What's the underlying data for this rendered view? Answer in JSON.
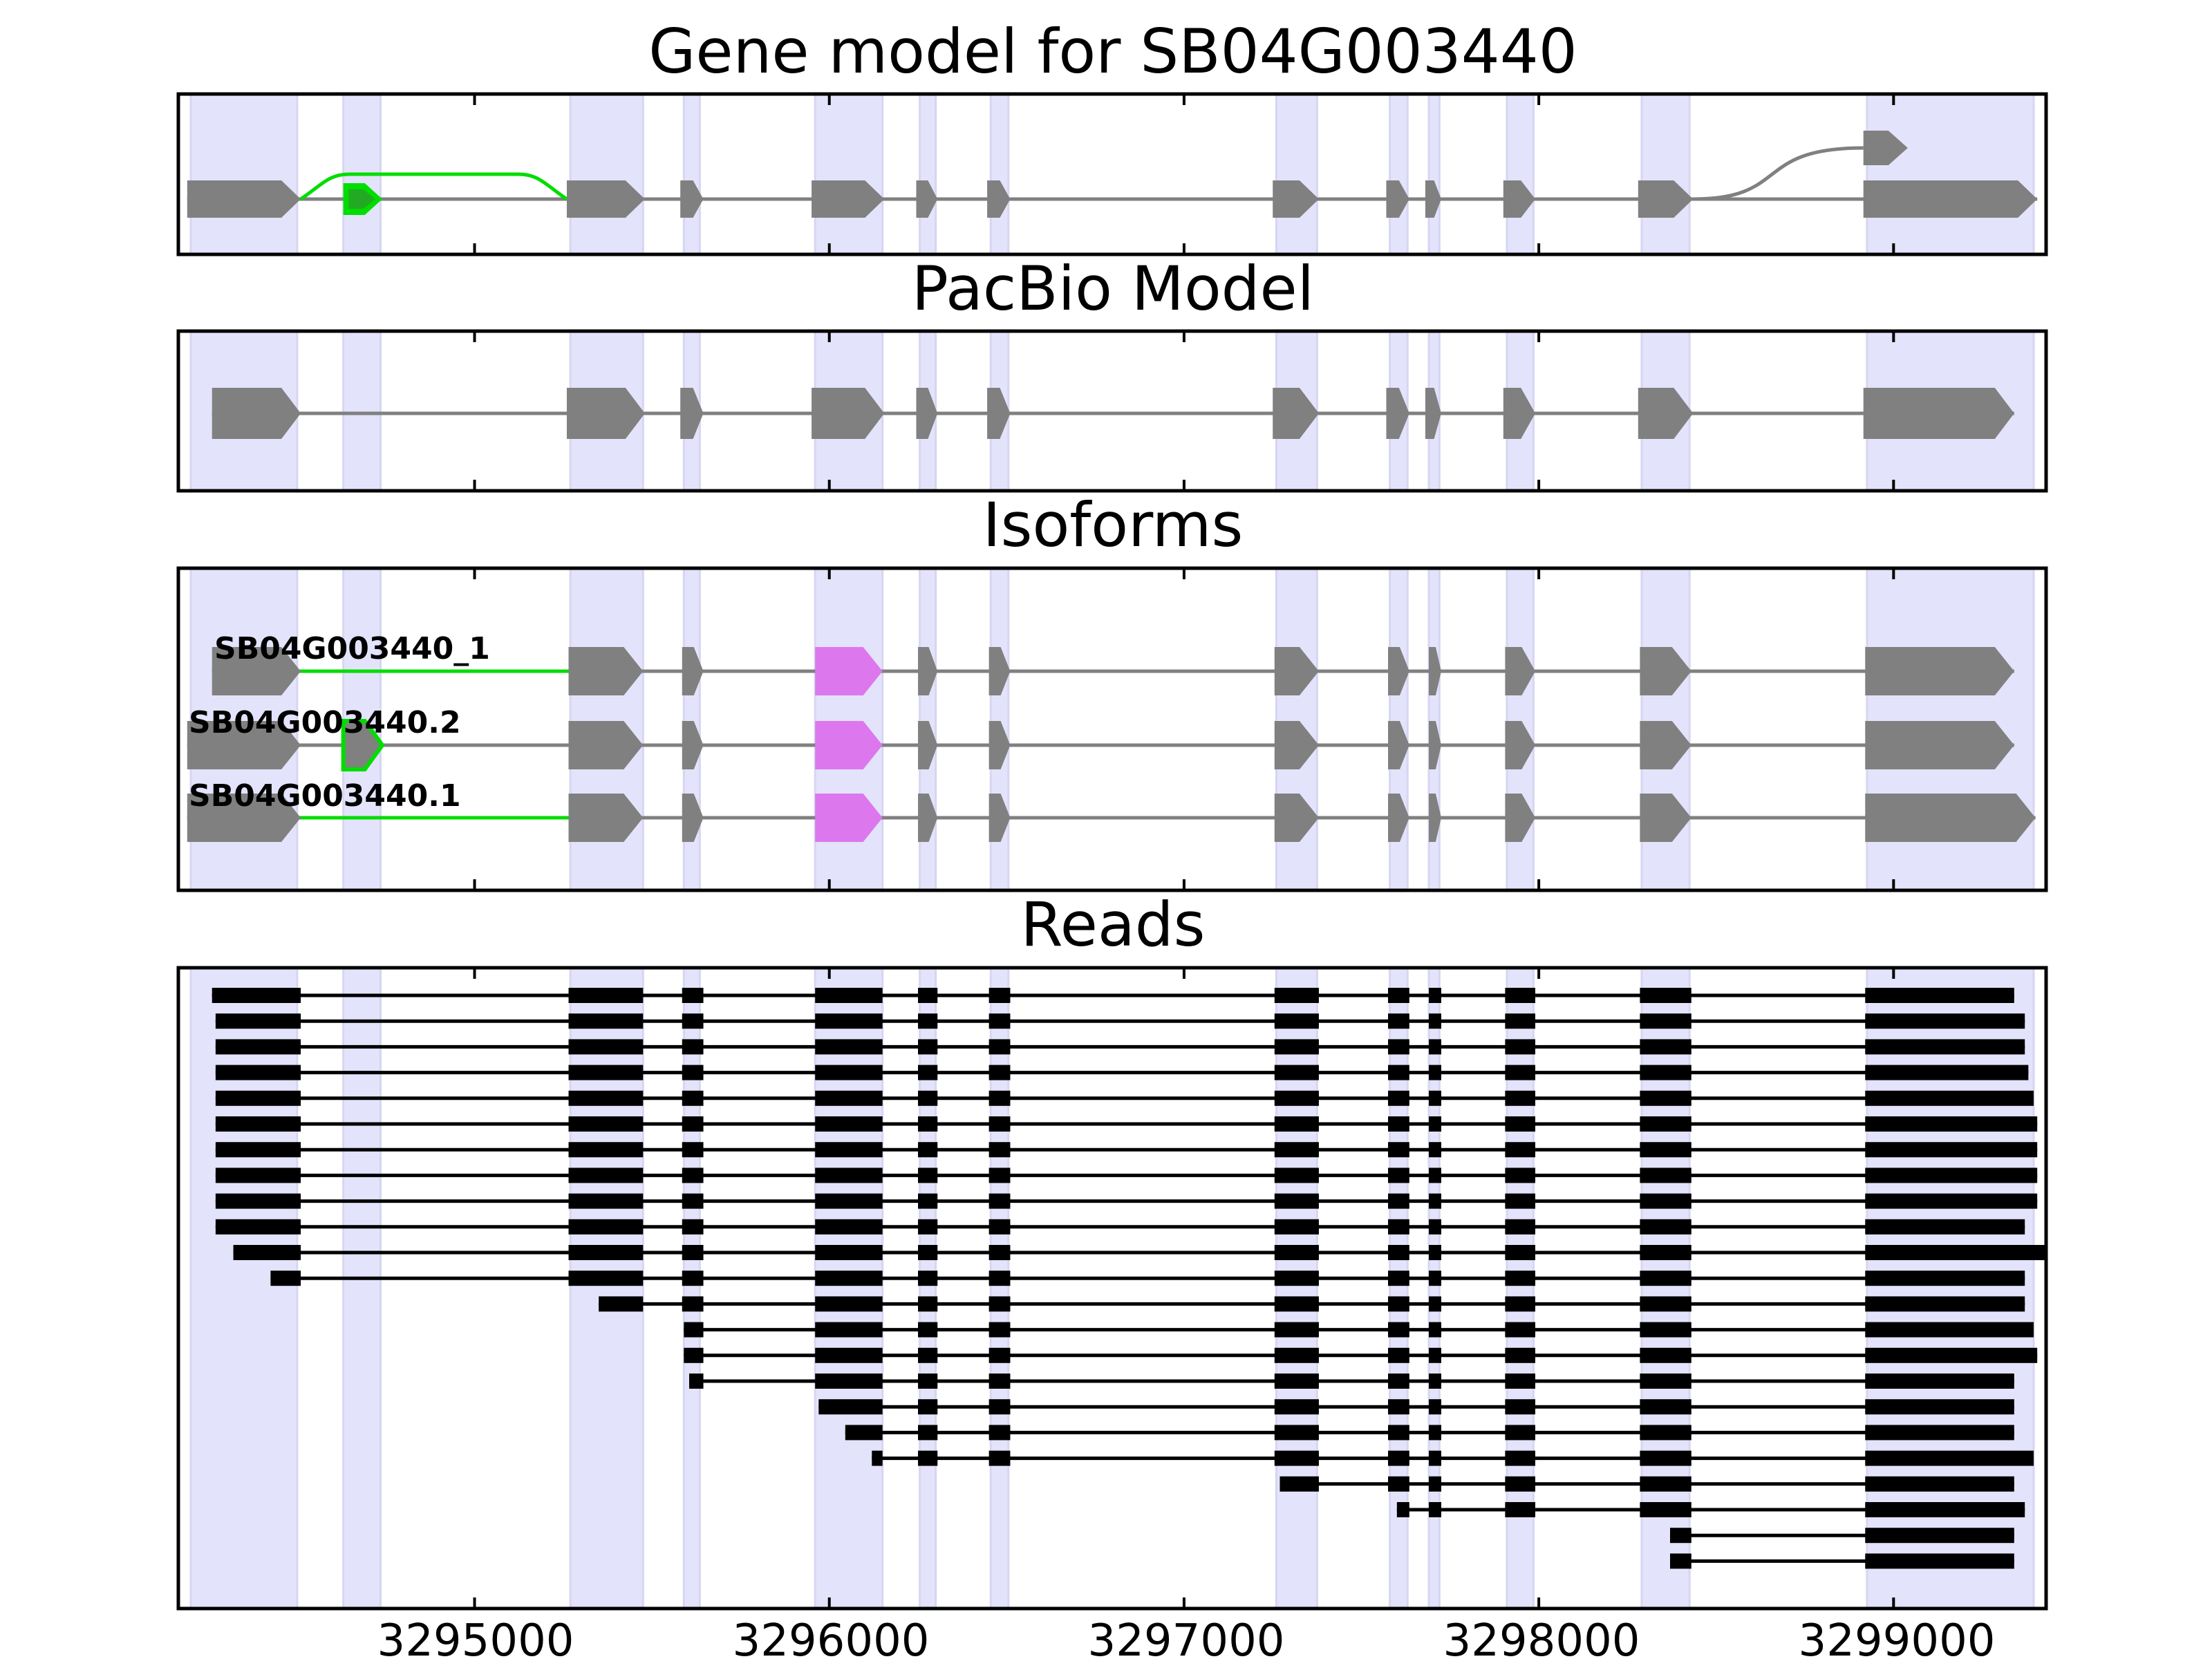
{
  "figure": {
    "panels": [
      {
        "id": "gene-model",
        "title": "Gene model for SB04G003440"
      },
      {
        "id": "pacbio-model",
        "title": "PacBio Model"
      },
      {
        "id": "isoforms",
        "title": "Isoforms"
      },
      {
        "id": "reads",
        "title": "Reads"
      }
    ],
    "x_axis": {
      "ticks": [
        3295000,
        3296000,
        3297000,
        3298000,
        3299000
      ],
      "tick_labels": [
        "3295000",
        "3296000",
        "3297000",
        "3298000",
        "3299000"
      ],
      "range": [
        3294165,
        3299430
      ]
    },
    "colors": {
      "exon": "#808080",
      "intron": "#808080",
      "alt_splice": "#00dd00",
      "highlight_exon": "#dd77ee",
      "shading": "#e3e3fb",
      "read": "#000000"
    }
  },
  "chart_data": {
    "type": "gene-structure",
    "shaded_regions": [
      [
        3294200,
        3294500
      ],
      [
        3294630,
        3294735
      ],
      [
        3295270,
        3295475
      ],
      [
        3295590,
        3295635
      ],
      [
        3295960,
        3296150
      ],
      [
        3296255,
        3296300
      ],
      [
        3296455,
        3296505
      ],
      [
        3297260,
        3297375
      ],
      [
        3297580,
        3297630
      ],
      [
        3297690,
        3297720
      ],
      [
        3297910,
        3297985
      ],
      [
        3298290,
        3298425
      ],
      [
        3298925,
        3299395
      ]
    ],
    "gene_model": {
      "exons": [
        [
          3294190,
          3294510
        ],
        [
          3295260,
          3295480
        ],
        [
          3295580,
          3295645
        ],
        [
          3295950,
          3296155
        ],
        [
          3296245,
          3296305
        ],
        [
          3296445,
          3296510
        ],
        [
          3297250,
          3297380
        ],
        [
          3297570,
          3297635
        ],
        [
          3297680,
          3297725
        ],
        [
          3297900,
          3297990
        ],
        [
          3298280,
          3298435
        ],
        [
          3298915,
          3299405
        ]
      ],
      "alternative_exons": [
        {
          "start": 3294630,
          "end": 3294740,
          "color": "green"
        },
        {
          "start": 3298915,
          "end": 3299040,
          "color": "grey"
        }
      ]
    },
    "pacbio_model": {
      "exons": [
        [
          3294260,
          3294510
        ],
        [
          3295260,
          3295480
        ],
        [
          3295580,
          3295645
        ],
        [
          3295950,
          3296155
        ],
        [
          3296245,
          3296305
        ],
        [
          3296445,
          3296510
        ],
        [
          3297250,
          3297380
        ],
        [
          3297570,
          3297635
        ],
        [
          3297680,
          3297725
        ],
        [
          3297900,
          3297990
        ],
        [
          3298280,
          3298435
        ],
        [
          3298915,
          3299340
        ]
      ]
    },
    "isoforms": [
      {
        "name": "SB04G003440_1",
        "exons": [
          [
            3294260,
            3294510
          ],
          [
            3295265,
            3295475
          ],
          [
            3295585,
            3295645
          ],
          [
            3295960,
            3296150
          ],
          [
            3296250,
            3296305
          ],
          [
            3296450,
            3296510
          ],
          [
            3297255,
            3297380
          ],
          [
            3297575,
            3297635
          ],
          [
            3297690,
            3297725
          ],
          [
            3297905,
            3297990
          ],
          [
            3298285,
            3298430
          ],
          [
            3298920,
            3299340
          ]
        ],
        "highlight_exon": 3,
        "green_intron": 0
      },
      {
        "name": "SB04G003440.2",
        "exons": [
          [
            3294190,
            3294510
          ],
          [
            3294630,
            3294740
          ],
          [
            3295265,
            3295475
          ],
          [
            3295585,
            3295645
          ],
          [
            3295960,
            3296150
          ],
          [
            3296250,
            3296305
          ],
          [
            3296450,
            3296510
          ],
          [
            3297255,
            3297380
          ],
          [
            3297575,
            3297635
          ],
          [
            3297690,
            3297725
          ],
          [
            3297905,
            3297990
          ],
          [
            3298285,
            3298430
          ],
          [
            3298920,
            3299340
          ]
        ],
        "highlight_exon": 4,
        "green_exon": 1
      },
      {
        "name": "SB04G003440.1",
        "exons": [
          [
            3294190,
            3294510
          ],
          [
            3295265,
            3295475
          ],
          [
            3295585,
            3295645
          ],
          [
            3295960,
            3296150
          ],
          [
            3296250,
            3296305
          ],
          [
            3296450,
            3296510
          ],
          [
            3297255,
            3297380
          ],
          [
            3297575,
            3297635
          ],
          [
            3297690,
            3297725
          ],
          [
            3297905,
            3297990
          ],
          [
            3298285,
            3298430
          ],
          [
            3298920,
            3299400
          ]
        ],
        "highlight_exon": 3,
        "green_intron": 0
      }
    ],
    "reads": [
      {
        "start": 3294260,
        "end": 3299340
      },
      {
        "start": 3294270,
        "end": 3299370
      },
      {
        "start": 3294270,
        "end": 3299370
      },
      {
        "start": 3294270,
        "end": 3299380
      },
      {
        "start": 3294270,
        "end": 3299395
      },
      {
        "start": 3294270,
        "end": 3299405
      },
      {
        "start": 3294270,
        "end": 3299405
      },
      {
        "start": 3294270,
        "end": 3299405
      },
      {
        "start": 3294270,
        "end": 3299405
      },
      {
        "start": 3294270,
        "end": 3299370
      },
      {
        "start": 3294320,
        "end": 3299430
      },
      {
        "start": 3294425,
        "end": 3299370
      },
      {
        "start": 3295350,
        "end": 3299370
      },
      {
        "start": 3295590,
        "end": 3299395
      },
      {
        "start": 3295590,
        "end": 3299405
      },
      {
        "start": 3295605,
        "end": 3299340
      },
      {
        "start": 3295970,
        "end": 3299340
      },
      {
        "start": 3296045,
        "end": 3299340
      },
      {
        "start": 3296120,
        "end": 3299395
      },
      {
        "start": 3297270,
        "end": 3299340
      },
      {
        "start": 3297600,
        "end": 3299370
      },
      {
        "start": 3298370,
        "end": 3299340
      },
      {
        "start": 3298370,
        "end": 3299340
      }
    ],
    "read_exon_blocks": [
      [
        3294260,
        3294510
      ],
      [
        3295265,
        3295475
      ],
      [
        3295585,
        3295645
      ],
      [
        3295960,
        3296150
      ],
      [
        3296250,
        3296305
      ],
      [
        3296450,
        3296510
      ],
      [
        3297255,
        3297380
      ],
      [
        3297575,
        3297635
      ],
      [
        3297690,
        3297725
      ],
      [
        3297905,
        3297990
      ],
      [
        3298285,
        3298430
      ],
      [
        3298920,
        3299430
      ]
    ]
  }
}
